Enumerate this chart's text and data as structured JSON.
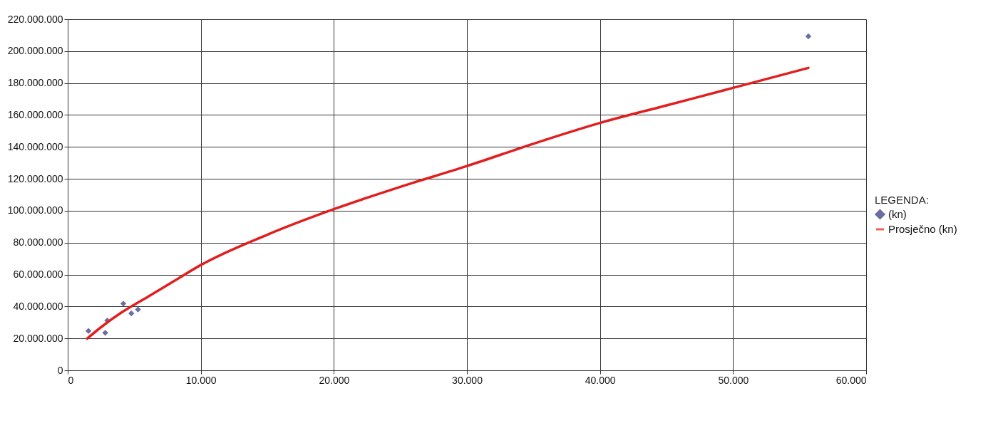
{
  "chart_data": {
    "type": "scatter",
    "legend_title": "LEGENDA:",
    "legend": "right",
    "grid": true,
    "xlim": [
      0,
      60000
    ],
    "ylim": [
      0,
      220000000
    ],
    "xticks": [
      0,
      {
        "value": 10000,
        "label": "10.000"
      },
      {
        "value": 20000,
        "label": "20.000"
      },
      {
        "value": 30000,
        "label": "30.000"
      },
      {
        "value": 40000,
        "label": "40.000"
      },
      {
        "value": 50000,
        "label": "50.000"
      },
      {
        "value": 60000,
        "label": "60.000"
      }
    ],
    "yticks": [
      0,
      {
        "value": 20000000,
        "label": "20.000.000"
      },
      {
        "value": 40000000,
        "label": "40.000.000"
      },
      {
        "value": 60000000,
        "label": "60.000.000"
      },
      {
        "value": 80000000,
        "label": "80.000.000"
      },
      {
        "value": 100000000,
        "label": "100.000.000"
      },
      {
        "value": 120000000,
        "label": "120.000.000"
      },
      {
        "value": 140000000,
        "label": "140.000.000"
      },
      {
        "value": 160000000,
        "label": "160.000.000"
      },
      {
        "value": 180000000,
        "label": "180.000.000"
      },
      {
        "value": 200000000,
        "label": "200.000.000"
      },
      {
        "value": 220000000,
        "label": "220.000.000"
      }
    ],
    "series": [
      {
        "name": "(kn)",
        "type": "scatter",
        "marker": "diamond",
        "color": "#2e2f7a",
        "x": [
          1560,
          2820,
          2970,
          4180,
          4780,
          5280,
          55660
        ],
        "values": [
          24700000,
          23500000,
          31200000,
          41800000,
          35700000,
          38100000,
          209300000
        ]
      },
      {
        "name": "Prosječno (kn)",
        "type": "line",
        "marker": "none",
        "line_style": "solid",
        "color": "#e02020",
        "x": [
          1460,
          2500,
          4000,
          6000,
          8000,
          10000,
          15000,
          20000,
          25000,
          30000,
          35000,
          40000,
          45000,
          50000,
          55660
        ],
        "values": [
          19900000,
          27000000,
          36000000,
          46000000,
          56000000,
          66000000,
          85000000,
          101000000,
          115000000,
          128000000,
          142000000,
          155000000,
          166000000,
          177000000,
          189500000
        ]
      }
    ]
  }
}
